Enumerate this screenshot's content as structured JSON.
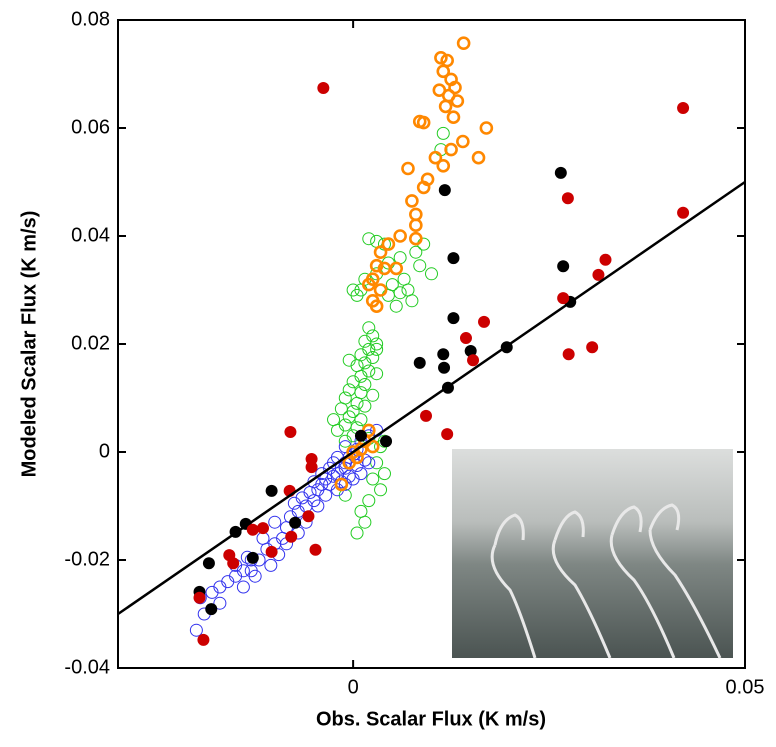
{
  "chart_data": {
    "type": "scatter",
    "x_label": "Obs. Scalar Flux (K m/s)",
    "y_label": "Modeled Scalar Flux (K m/s)",
    "xlim": [
      -0.03,
      0.05
    ],
    "xticks": [
      0,
      0.05
    ],
    "ylim": [
      -0.04,
      0.08
    ],
    "yticks": [
      -0.04,
      -0.02,
      0,
      0.02,
      0.04,
      0.06,
      0.08
    ],
    "series": [
      {
        "color": "#22cc22",
        "marker": "open",
        "x": [
          0.0005,
          0.001,
          0,
          0.0015,
          0.003,
          0.0045,
          0.006,
          0.0065,
          0.007,
          0.0075,
          0.006,
          0.005,
          0.008,
          0.009,
          0.0085,
          0.004,
          0.002,
          0.003,
          0.01,
          0.0115,
          0.0112,
          0.0055,
          0.0045,
          0.002,
          0.0025,
          0.0015,
          0.003,
          0.002,
          0.001,
          0.0025,
          0.0015,
          0.0005,
          0.002,
          0.001,
          0.003,
          0,
          0.0015,
          -0.0005,
          0.001,
          0.0025,
          -0.001,
          0.0005,
          0.0015,
          -0.0015,
          0,
          -0.0005,
          0.001,
          -0.001,
          0.0005,
          -0.002,
          0,
          0.002,
          -0.001,
          0.0035,
          0.003,
          0.0025,
          0.0035,
          0.002,
          0.001,
          0.0015,
          0.0005,
          -0.001,
          0.004,
          -0.0025,
          0.003,
          -0.0005,
          0.004
        ],
        "values": [
          0.029,
          0.03,
          0.03,
          0.032,
          0.033,
          0.035,
          0.036,
          0.032,
          0.03,
          0.028,
          0.0295,
          0.031,
          0.037,
          0.0385,
          0.0345,
          0.0385,
          0.0395,
          0.039,
          0.033,
          0.059,
          0.056,
          0.027,
          0.029,
          0.023,
          0.0215,
          0.0205,
          0.02,
          0.019,
          0.018,
          0.0175,
          0.0165,
          0.016,
          0.015,
          0.014,
          0.0145,
          0.013,
          0.0125,
          0.0115,
          0.011,
          0.0105,
          0.01,
          0.009,
          0.0085,
          0.008,
          0.0075,
          0.0065,
          0.006,
          0.005,
          0.0045,
          0.004,
          0.003,
          0.0025,
          0.002,
          0.001,
          -0.002,
          -0.005,
          -0.007,
          -0.009,
          -0.011,
          -0.013,
          -0.015,
          -0.008,
          -0.004,
          0.006,
          0.019,
          0.017,
          0.002
        ]
      },
      {
        "color": "#3333ee",
        "marker": "open",
        "x": [
          -0.02,
          -0.019,
          -0.0195,
          -0.018,
          -0.017,
          -0.016,
          -0.015,
          -0.014,
          -0.013,
          -0.015,
          -0.012,
          -0.0135,
          -0.011,
          -0.01,
          -0.0115,
          -0.009,
          -0.0085,
          -0.01,
          -0.008,
          -0.007,
          -0.0075,
          -0.006,
          -0.0065,
          -0.005,
          -0.0055,
          -0.0045,
          -0.004,
          -0.005,
          -0.0035,
          -0.003,
          -0.0025,
          -0.004,
          -0.002,
          -0.003,
          -0.0015,
          -0.0025,
          -0.001,
          -0.0005,
          -0.002,
          0,
          0.0005,
          -0.001,
          0.001,
          0.002,
          0.003,
          -0.0035,
          -0.002,
          -0.001,
          0,
          0.001,
          0.002,
          -0.0045,
          -0.006,
          -0.007,
          -0.0085,
          -0.0095,
          -0.0105,
          -0.0125,
          -0.014,
          -0.017,
          -0.013,
          -0.001,
          -0.0005,
          -0.0015,
          0.0005,
          0.0015
        ],
        "values": [
          -0.033,
          -0.03,
          -0.027,
          -0.026,
          -0.025,
          -0.024,
          -0.023,
          -0.022,
          -0.022,
          -0.021,
          -0.02,
          -0.0195,
          -0.018,
          -0.017,
          -0.016,
          -0.016,
          -0.014,
          -0.013,
          -0.012,
          -0.011,
          -0.0095,
          -0.01,
          -0.0085,
          -0.009,
          -0.0075,
          -0.007,
          -0.006,
          -0.0055,
          -0.005,
          -0.006,
          -0.0045,
          -0.004,
          -0.004,
          -0.003,
          -0.003,
          -0.002,
          -0.002,
          -0.001,
          -0.001,
          -0.0005,
          0.0005,
          0.001,
          0.002,
          0.003,
          0.004,
          -0.008,
          -0.007,
          -0.006,
          -0.005,
          -0.004,
          -0.002,
          -0.01,
          -0.013,
          -0.015,
          -0.017,
          -0.019,
          -0.021,
          -0.023,
          -0.025,
          -0.028,
          -0.02,
          -0.003,
          -0.0045,
          -0.0055,
          -0.0025,
          -0.0015
        ]
      },
      {
        "color": "#ff8800",
        "marker": "open-thick",
        "x": [
          0.0141,
          0.0112,
          0.012,
          0.0115,
          0.0125,
          0.013,
          0.011,
          0.0122,
          0.0133,
          0.0118,
          0.0128,
          0.009,
          0.0085,
          0.017,
          0.014,
          0.0125,
          0.0105,
          0.0115,
          0.016,
          0.007,
          0.0095,
          0.009,
          0.0075,
          0.008,
          0.008,
          0.006,
          0.008,
          0.0045,
          0.0035,
          0.004,
          0.003,
          0.0055,
          0.0025,
          0.002,
          0.0035,
          0.0025,
          0.003,
          0.002,
          0.0015,
          0.001,
          0.0005,
          -0.0005,
          -0.0015,
          0,
          0.0025
        ],
        "values": [
          0.0757,
          0.073,
          0.0725,
          0.0705,
          0.069,
          0.0675,
          0.067,
          0.066,
          0.065,
          0.064,
          0.062,
          0.061,
          0.0612,
          0.06,
          0.0575,
          0.056,
          0.0545,
          0.053,
          0.0545,
          0.0525,
          0.0505,
          0.049,
          0.0465,
          0.044,
          0.042,
          0.04,
          0.0395,
          0.0385,
          0.037,
          0.034,
          0.0345,
          0.034,
          0.032,
          0.031,
          0.03,
          0.028,
          0.027,
          0.004,
          0.002,
          0.0005,
          -0.001,
          -0.002,
          -0.006,
          0,
          0.001
        ]
      },
      {
        "color": "#000000",
        "marker": "filled",
        "x": [
          0.0265,
          0.0117,
          0.0268,
          0.0128,
          0.0128,
          0.0277,
          0.0196,
          0.015,
          0.0115,
          0.0085,
          0.0116,
          0.0121,
          0.0042,
          0.001,
          -0.0104,
          -0.0137,
          -0.015,
          -0.0184,
          -0.0074,
          -0.0196,
          -0.0181,
          -0.0128
        ],
        "values": [
          0.0517,
          0.0485,
          0.0344,
          0.0359,
          0.0248,
          0.0278,
          0.0194,
          0.0187,
          0.0181,
          0.0165,
          0.0156,
          0.0119,
          0.002,
          0.003,
          -0.0072,
          -0.0133,
          -0.0148,
          -0.0206,
          -0.0131,
          -0.0259,
          -0.0291,
          -0.0196
        ]
      },
      {
        "color": "#cc0000",
        "marker": "filled",
        "x": [
          -0.0038,
          0.0421,
          0.0421,
          0.0274,
          0.0322,
          0.0313,
          0.0268,
          0.0305,
          0.0275,
          0.0167,
          0.0144,
          0.0153,
          0.0093,
          0.012,
          -0.008,
          -0.0053,
          -0.0053,
          -0.0081,
          -0.0057,
          -0.0048,
          -0.0079,
          -0.0104,
          -0.0115,
          -0.0158,
          -0.0153,
          -0.0196,
          -0.0191,
          -0.0128
        ],
        "values": [
          0.0674,
          0.0637,
          0.0443,
          0.047,
          0.0356,
          0.0328,
          0.0285,
          0.0194,
          0.0181,
          0.0241,
          0.0211,
          0.017,
          0.0067,
          0.0033,
          0.0037,
          -0.0013,
          -0.0028,
          -0.0072,
          -0.0119,
          -0.0181,
          -0.0157,
          -0.0185,
          -0.0141,
          -0.0191,
          -0.0206,
          -0.027,
          -0.0348,
          -0.0144
        ]
      },
      {
        "type": "line",
        "color": "#000000",
        "x": [
          -0.03,
          0.05
        ],
        "values": [
          -0.03,
          0.05
        ]
      }
    ]
  }
}
